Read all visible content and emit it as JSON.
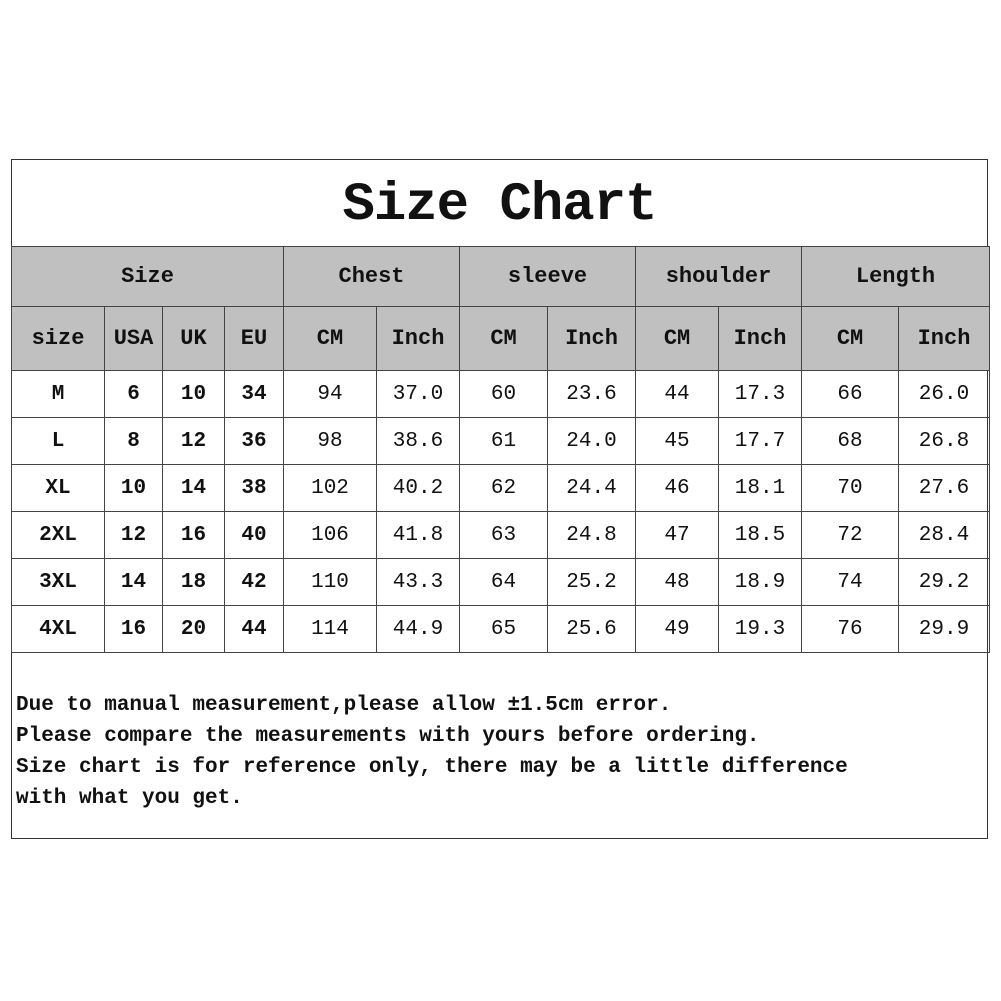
{
  "title": "Size Chart",
  "groups": [
    "Size",
    "Chest",
    "sleeve",
    "shoulder",
    "Length"
  ],
  "subheaders": [
    "size",
    "USA",
    "UK",
    "EU",
    "CM",
    "Inch",
    "CM",
    "Inch",
    "CM",
    "Inch",
    "CM",
    "Inch"
  ],
  "rows": [
    [
      "M",
      "6",
      "10",
      "34",
      "94",
      "37.0",
      "60",
      "23.6",
      "44",
      "17.3",
      "66",
      "26.0"
    ],
    [
      "L",
      "8",
      "12",
      "36",
      "98",
      "38.6",
      "61",
      "24.0",
      "45",
      "17.7",
      "68",
      "26.8"
    ],
    [
      "XL",
      "10",
      "14",
      "38",
      "102",
      "40.2",
      "62",
      "24.4",
      "46",
      "18.1",
      "70",
      "27.6"
    ],
    [
      "2XL",
      "12",
      "16",
      "40",
      "106",
      "41.8",
      "63",
      "24.8",
      "47",
      "18.5",
      "72",
      "28.4"
    ],
    [
      "3XL",
      "14",
      "18",
      "42",
      "110",
      "43.3",
      "64",
      "25.2",
      "48",
      "18.9",
      "74",
      "29.2"
    ],
    [
      "4XL",
      "16",
      "20",
      "44",
      "114",
      "44.9",
      "65",
      "25.6",
      "49",
      "19.3",
      "76",
      "29.9"
    ]
  ],
  "notes": [
    "Due to manual measurement,please allow ±1.5cm error.",
    "Please compare the measurements with yours before ordering.",
    "Size chart is for reference only, there may be a little difference",
    "with what you get."
  ],
  "colors": {
    "header_bg": "#c0c0c0",
    "border": "#444444"
  }
}
